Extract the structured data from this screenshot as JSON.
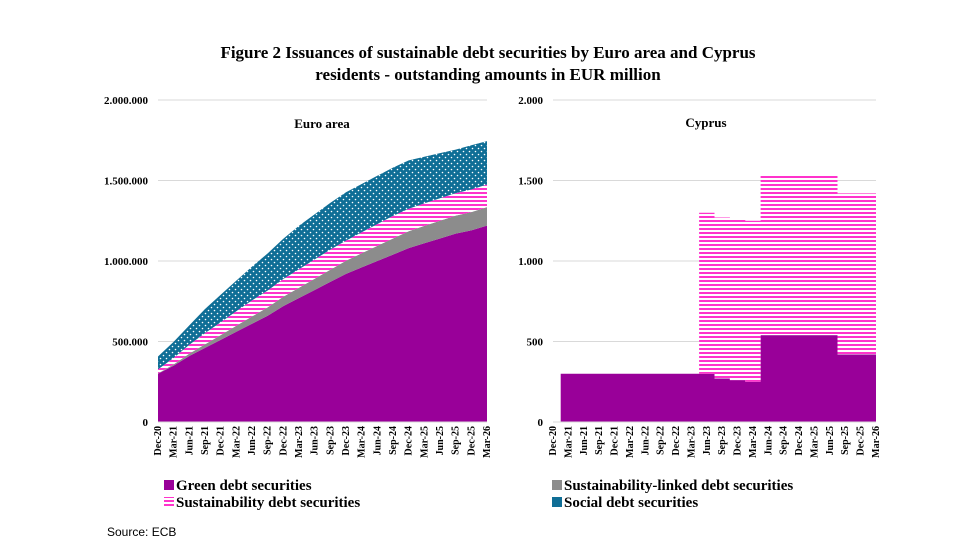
{
  "title_line1": "Figure 2  Issuances of sustainable debt securities by Euro area and Cyprus",
  "title_line2": "residents - outstanding amounts in EUR million",
  "source": "Source: ECB",
  "colors": {
    "green": "#990099",
    "sustainability_linked": "#8c8c8c",
    "sustainability": "#ff33cc",
    "social": "#0f6e96"
  },
  "legend": [
    {
      "key": "green",
      "label": "Green debt securities",
      "pattern": "solid"
    },
    {
      "key": "sustainability_linked",
      "label": "Sustainability-linked debt securities",
      "pattern": "solid"
    },
    {
      "key": "sustainability",
      "label": "Sustainability debt securities",
      "pattern": "stripes"
    },
    {
      "key": "social",
      "label": "Social debt securities",
      "pattern": "dots"
    }
  ],
  "x_tick_labels": [
    "Dec-20",
    "Mar-21",
    "Jun-21",
    "Sep-21",
    "Dec-21",
    "Mar-22",
    "Jun-22",
    "Sep-22",
    "Dec-22",
    "Mar-23",
    "Jun-23",
    "Sep-23",
    "Dec-23",
    "Mar-24",
    "Jun-24",
    "Sep-24",
    "Dec-24",
    "Mar-25",
    "Jun-25",
    "Sep-25",
    "Dec-25",
    "Mar-26"
  ],
  "chart_data": [
    {
      "type": "area",
      "stacked": true,
      "title": "Euro area",
      "ylim": [
        0,
        2000000
      ],
      "yticks": [
        0,
        500000,
        1000000,
        1500000,
        2000000
      ],
      "ytick_labels": [
        "0",
        "500.000",
        "1.000.000",
        "1.500.000",
        "2.000.000"
      ],
      "grid": true,
      "categories": [
        "Dec-20",
        "Mar-21",
        "Jun-21",
        "Sep-21",
        "Dec-21",
        "Mar-22",
        "Jun-22",
        "Sep-22",
        "Dec-22",
        "Mar-23",
        "Jun-23",
        "Sep-23",
        "Dec-23",
        "Mar-24",
        "Jun-24",
        "Sep-24",
        "Dec-24",
        "Mar-25",
        "Jun-25",
        "Sep-25",
        "Dec-25",
        "Mar-26"
      ],
      "series": [
        {
          "name": "Green debt securities",
          "key": "green",
          "values": [
            300000,
            350000,
            410000,
            460000,
            510000,
            560000,
            610000,
            660000,
            720000,
            770000,
            820000,
            870000,
            920000,
            960000,
            1000000,
            1040000,
            1080000,
            1110000,
            1140000,
            1170000,
            1190000,
            1220000
          ]
        },
        {
          "name": "Sustainability-linked debt securities",
          "key": "sustainability_linked",
          "values": [
            2000,
            8000,
            15000,
            22000,
            30000,
            38000,
            45000,
            52000,
            58000,
            64000,
            70000,
            76000,
            82000,
            88000,
            94000,
            100000,
            105000,
            108000,
            110000,
            112000,
            114000,
            115000
          ]
        },
        {
          "name": "Sustainability debt securities",
          "key": "sustainability",
          "values": [
            25000,
            40000,
            55000,
            70000,
            80000,
            90000,
            100000,
            105000,
            110000,
            115000,
            120000,
            125000,
            125000,
            130000,
            135000,
            140000,
            140000,
            140000,
            140000,
            140000,
            140000,
            140000
          ]
        },
        {
          "name": "Social debt securities",
          "key": "social",
          "values": [
            80000,
            100000,
            120000,
            150000,
            170000,
            190000,
            210000,
            230000,
            250000,
            270000,
            280000,
            290000,
            300000,
            300000,
            300000,
            300000,
            300000,
            290000,
            280000,
            270000,
            275000,
            270000
          ]
        }
      ]
    },
    {
      "type": "area",
      "stacked": true,
      "title": "Cyprus",
      "ylim": [
        0,
        2000
      ],
      "yticks": [
        0,
        500,
        1000,
        1500,
        2000
      ],
      "ytick_labels": [
        "0",
        "500",
        "1.000",
        "1.500",
        "2.000"
      ],
      "grid": true,
      "categories": [
        "Dec-20",
        "Mar-21",
        "Jun-21",
        "Sep-21",
        "Dec-21",
        "Mar-22",
        "Jun-22",
        "Sep-22",
        "Dec-22",
        "Mar-23",
        "Jun-23",
        "Sep-23",
        "Dec-23",
        "Mar-24",
        "Jun-24",
        "Sep-24",
        "Dec-24",
        "Mar-25",
        "Jun-25",
        "Sep-25",
        "Dec-25",
        "Mar-26"
      ],
      "series": [
        {
          "name": "Green debt securities",
          "key": "green",
          "values": [
            0,
            300,
            300,
            300,
            300,
            300,
            300,
            300,
            300,
            300,
            300,
            270,
            260,
            250,
            540,
            540,
            540,
            540,
            540,
            420,
            420,
            420
          ]
        },
        {
          "name": "Sustainability-linked debt securities",
          "key": "sustainability_linked",
          "values": [
            0,
            0,
            0,
            0,
            0,
            0,
            0,
            0,
            0,
            0,
            0,
            0,
            0,
            0,
            0,
            0,
            0,
            0,
            0,
            0,
            0,
            0
          ]
        },
        {
          "name": "Sustainability debt securities",
          "key": "sustainability",
          "values": [
            0,
            0,
            0,
            0,
            0,
            0,
            0,
            0,
            0,
            0,
            1000,
            1000,
            1000,
            1000,
            1000,
            1000,
            1000,
            1000,
            1000,
            1000,
            1000,
            1000
          ]
        },
        {
          "name": "Social debt securities",
          "key": "social",
          "values": [
            0,
            0,
            0,
            0,
            0,
            0,
            0,
            0,
            0,
            0,
            0,
            0,
            0,
            0,
            0,
            0,
            0,
            0,
            0,
            0,
            0,
            0
          ]
        }
      ]
    }
  ]
}
